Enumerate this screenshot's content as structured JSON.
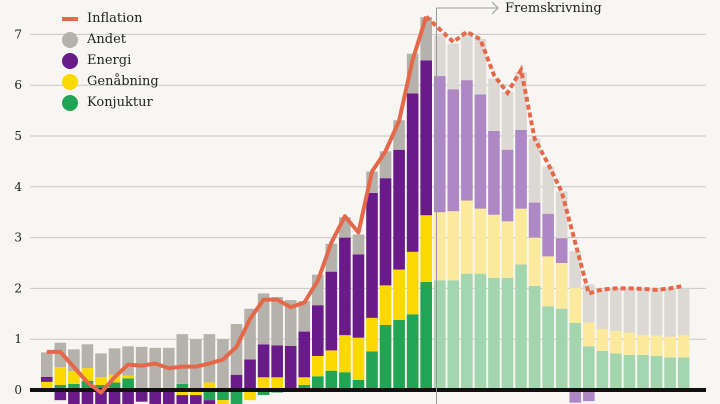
{
  "chart_data": {
    "type": "bar",
    "title": "",
    "xlabel": "",
    "ylabel": "",
    "ylim": [
      -0.3,
      7.5
    ],
    "yticks": [
      "0",
      "1",
      "2",
      "3",
      "4",
      "5",
      "6",
      "7"
    ],
    "grid": true,
    "legend_position": "top-left",
    "stacked": true,
    "annotation": "Fremskrivning",
    "forecast_start_index": 29,
    "colors": {
      "inflation": "#e4694a",
      "andet": "#b5b2ac",
      "energi": "#6a1b8a",
      "genabning": "#fbd800",
      "konjuktur": "#21a453",
      "andet_forecast": "#dcd9d4",
      "energi_forecast": "#ad88c4",
      "genabning_forecast": "#fbe99c",
      "konjuktur_forecast": "#a3d5ae"
    },
    "legend": [
      {
        "key": "inflation",
        "label": "Inflation"
      },
      {
        "key": "andet",
        "label": "Andet"
      },
      {
        "key": "energi",
        "label": "Energi"
      },
      {
        "key": "genabning",
        "label": "Genåbning"
      },
      {
        "key": "konjuktur",
        "label": "Konjuktur"
      }
    ],
    "series": [
      {
        "name": "Konjuktur",
        "key": "konjuktur",
        "values": [
          0,
          0.1,
          0.12,
          0.18,
          0.1,
          0.15,
          0.23,
          0,
          0,
          0,
          0.12,
          0,
          -0.2,
          -0.2,
          -0.3,
          0,
          -0.1,
          -0.05,
          0,
          0.1,
          0.27,
          0.38,
          0.35,
          0.2,
          0.76,
          1.28,
          1.38,
          1.49,
          2.13,
          2.16,
          2.16,
          2.29,
          2.29,
          2.21,
          2.21,
          2.47,
          2.05,
          1.65,
          1.6,
          1.32,
          0.86,
          0.77,
          0.72,
          0.69,
          0.69,
          0.67,
          0.64,
          0.64
        ]
      },
      {
        "name": "Genåbning",
        "key": "genabning",
        "values": [
          0.16,
          0.35,
          0.25,
          0.25,
          0.15,
          0.15,
          0.05,
          -0.03,
          0,
          0,
          -0.1,
          -0.1,
          0.15,
          -0.15,
          0,
          -0.2,
          0.25,
          0.25,
          0,
          0.15,
          0.4,
          0.4,
          0.73,
          0.83,
          0.66,
          0.78,
          0.99,
          1.23,
          1.31,
          1.34,
          1.36,
          1.44,
          1.28,
          1.24,
          1.11,
          1.1,
          0.95,
          0.98,
          0.9,
          0.69,
          0.47,
          0.43,
          0.44,
          0.44,
          0.39,
          0.4,
          0.41,
          0.44
        ]
      },
      {
        "name": "Energi",
        "key": "energi",
        "values": [
          0.1,
          -0.2,
          -0.3,
          -0.3,
          -0.3,
          -0.3,
          -0.3,
          -0.2,
          -0.3,
          -0.3,
          -0.2,
          -0.2,
          -0.3,
          -0.1,
          0.3,
          0.6,
          0.65,
          0.63,
          0.87,
          0.9,
          1.0,
          1.55,
          1.92,
          1.64,
          2.46,
          2.11,
          2.36,
          3.12,
          3.05,
          2.68,
          2.4,
          2.37,
          2.25,
          1.65,
          1.41,
          1.55,
          0.69,
          0.84,
          0.49,
          -0.25,
          -0.22,
          0,
          0,
          0,
          0,
          0,
          0,
          0
        ]
      },
      {
        "name": "Andet",
        "key": "andet",
        "values": [
          0.48,
          0.48,
          0.43,
          0.47,
          0.47,
          0.52,
          0.58,
          0.85,
          0.83,
          0.83,
          0.98,
          1.0,
          0.95,
          1.0,
          1.0,
          1.0,
          1.0,
          0.95,
          0.9,
          0.6,
          0.6,
          0.55,
          0.4,
          0.39,
          0.42,
          0.53,
          0.58,
          0.78,
          0.85,
          0.8,
          0.9,
          0.95,
          1.09,
          1.03,
          1.14,
          1.14,
          1.26,
          0.93,
          0.92,
          0.72,
          0.75,
          0.78,
          0.84,
          0.89,
          0.92,
          0.93,
          0.95,
          0.92
        ]
      },
      {
        "name": "Inflation",
        "key": "inflation",
        "type": "line",
        "values": [
          0.75,
          0.75,
          0.45,
          0.15,
          -0.05,
          0.25,
          0.5,
          0.48,
          0.52,
          0.43,
          0.46,
          0.46,
          0.52,
          0.6,
          0.85,
          1.4,
          1.78,
          1.78,
          1.63,
          1.72,
          2.15,
          2.9,
          3.42,
          3.1,
          4.3,
          4.7,
          5.3,
          6.5,
          7.35,
          7.1,
          6.85,
          7.05,
          6.9,
          6.2,
          5.85,
          6.3,
          4.95,
          4.45,
          3.9,
          2.9,
          1.9,
          1.98,
          2.0,
          2.0,
          1.99,
          1.97,
          2.0,
          2.05
        ]
      }
    ]
  }
}
